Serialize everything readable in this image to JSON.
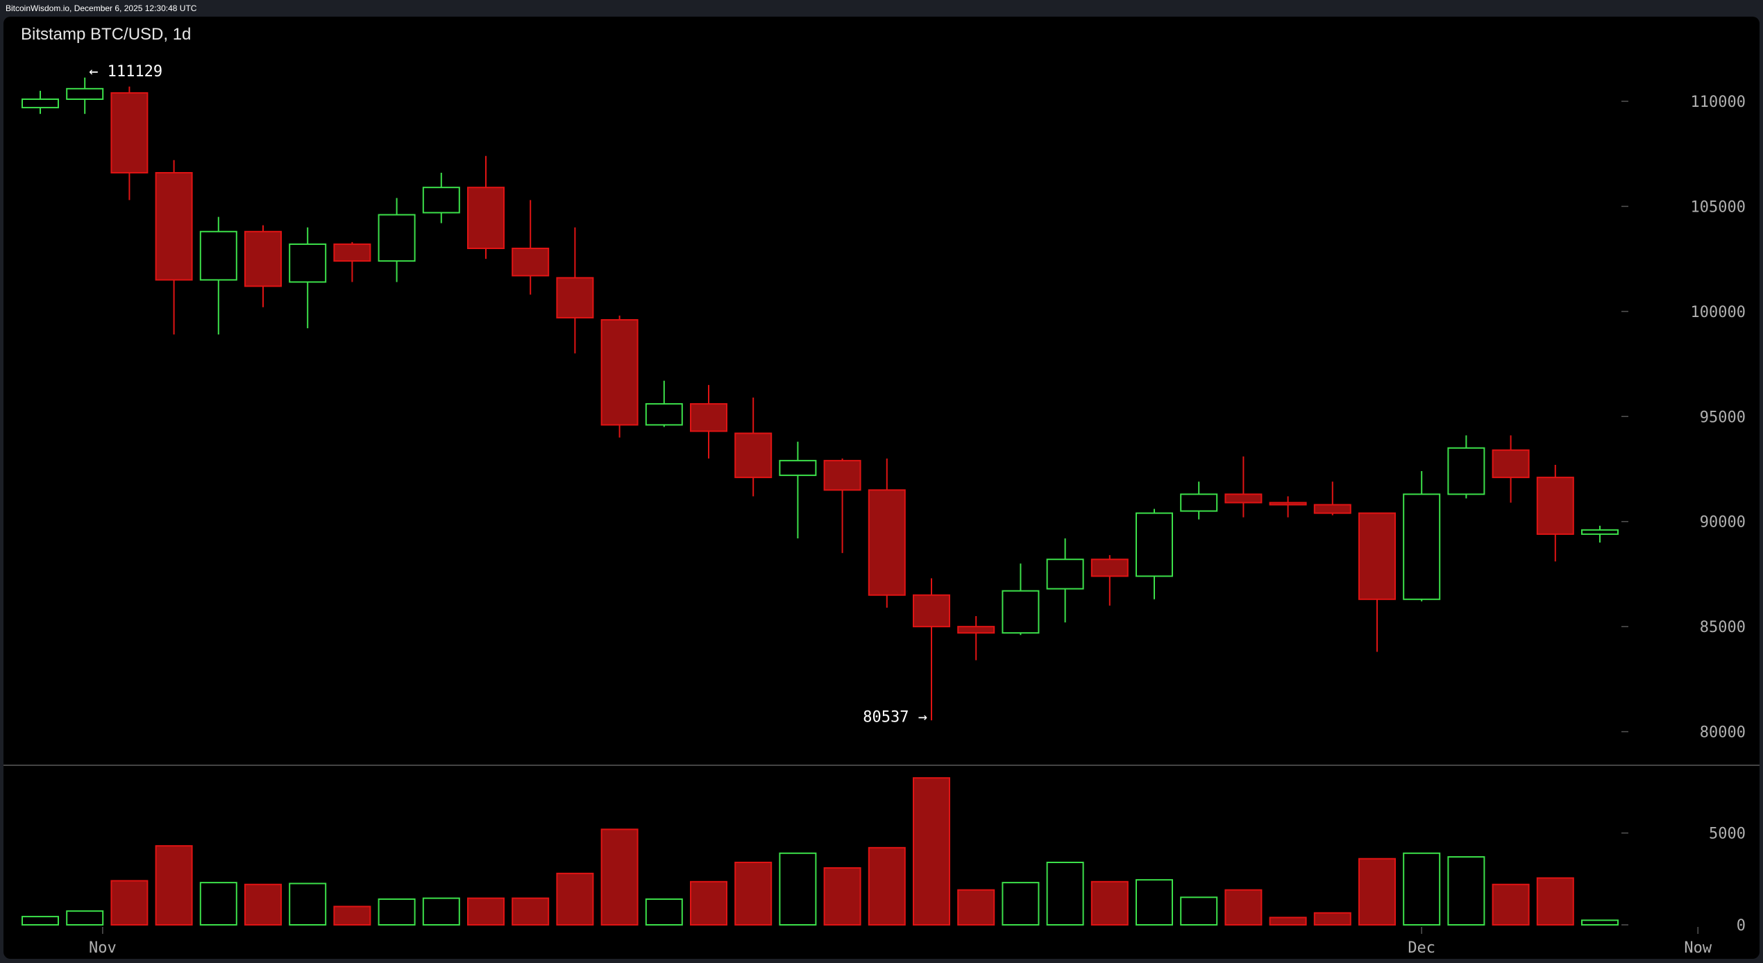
{
  "header": {
    "source": "BitcoinWisdom.io, December 6, 2025 12:30:48 UTC"
  },
  "chart_data": {
    "type": "candlestick",
    "title": "Bitstamp BTC/USD, 1d",
    "colors": {
      "up": "#3ce04a",
      "down": "#e01414",
      "down_fill": "#9b1010",
      "background": "#000000",
      "axis_text": "#b0b0b0"
    },
    "ylim": [
      78500,
      113500
    ],
    "y_ticks": [
      80000,
      85000,
      90000,
      95000,
      100000,
      105000,
      110000
    ],
    "y_tick_labels": [
      "80000",
      "85000",
      "90000",
      "95000",
      "100000",
      "105000",
      "110000"
    ],
    "volume_ylim": [
      0,
      8500
    ],
    "volume_ticks": [
      0,
      5000
    ],
    "volume_tick_labels": [
      "0",
      "5000"
    ],
    "x_labels": [
      {
        "label": "Nov",
        "index": 1.4
      },
      {
        "label": "Dec",
        "index": 31
      },
      {
        "label": "Now",
        "index": 37.2
      }
    ],
    "annotations": [
      {
        "label": "← 111129",
        "index": 1,
        "value": 111129,
        "side": "right"
      },
      {
        "label": "80537 →",
        "index": 20,
        "value": 80537,
        "side": "left"
      }
    ],
    "candles": [
      {
        "o": 109700,
        "h": 110500,
        "l": 109400,
        "c": 110100,
        "v": 450
      },
      {
        "o": 110100,
        "h": 111129,
        "l": 109400,
        "c": 110600,
        "v": 750
      },
      {
        "o": 110400,
        "h": 110700,
        "l": 105300,
        "c": 106600,
        "v": 2400
      },
      {
        "o": 106600,
        "h": 107200,
        "l": 98900,
        "c": 101500,
        "v": 4300
      },
      {
        "o": 101500,
        "h": 104500,
        "l": 98900,
        "c": 103800,
        "v": 2300
      },
      {
        "o": 103800,
        "h": 104100,
        "l": 100200,
        "c": 101200,
        "v": 2200
      },
      {
        "o": 101400,
        "h": 104000,
        "l": 99200,
        "c": 103200,
        "v": 2250
      },
      {
        "o": 103200,
        "h": 103300,
        "l": 101400,
        "c": 102400,
        "v": 1000
      },
      {
        "o": 102400,
        "h": 105400,
        "l": 101400,
        "c": 104600,
        "v": 1400
      },
      {
        "o": 104700,
        "h": 106600,
        "l": 104200,
        "c": 105900,
        "v": 1450
      },
      {
        "o": 105900,
        "h": 107400,
        "l": 102500,
        "c": 103000,
        "v": 1450
      },
      {
        "o": 103000,
        "h": 105300,
        "l": 100800,
        "c": 101700,
        "v": 1450
      },
      {
        "o": 101600,
        "h": 104000,
        "l": 98000,
        "c": 99700,
        "v": 2800
      },
      {
        "o": 99600,
        "h": 99800,
        "l": 94000,
        "c": 94600,
        "v": 5200
      },
      {
        "o": 94600,
        "h": 96700,
        "l": 94500,
        "c": 95600,
        "v": 1400
      },
      {
        "o": 95600,
        "h": 96500,
        "l": 93000,
        "c": 94300,
        "v": 2350
      },
      {
        "o": 94200,
        "h": 95900,
        "l": 91200,
        "c": 92100,
        "v": 3400
      },
      {
        "o": 92200,
        "h": 93800,
        "l": 89200,
        "c": 92900,
        "v": 3900
      },
      {
        "o": 92900,
        "h": 93000,
        "l": 88500,
        "c": 91500,
        "v": 3100
      },
      {
        "o": 91500,
        "h": 93000,
        "l": 85900,
        "c": 86500,
        "v": 4200
      },
      {
        "o": 86500,
        "h": 87300,
        "l": 80537,
        "c": 85000,
        "v": 8000
      },
      {
        "o": 85000,
        "h": 85500,
        "l": 83400,
        "c": 84700,
        "v": 1900
      },
      {
        "o": 84700,
        "h": 88000,
        "l": 84600,
        "c": 86700,
        "v": 2300
      },
      {
        "o": 86800,
        "h": 89200,
        "l": 85200,
        "c": 88200,
        "v": 3400
      },
      {
        "o": 88200,
        "h": 88400,
        "l": 86000,
        "c": 87400,
        "v": 2350
      },
      {
        "o": 87400,
        "h": 90600,
        "l": 86300,
        "c": 90400,
        "v": 2450
      },
      {
        "o": 90500,
        "h": 91900,
        "l": 90100,
        "c": 91300,
        "v": 1500
      },
      {
        "o": 91300,
        "h": 93100,
        "l": 90200,
        "c": 90900,
        "v": 1900
      },
      {
        "o": 90900,
        "h": 91200,
        "l": 90200,
        "c": 90800,
        "v": 400
      },
      {
        "o": 90800,
        "h": 91900,
        "l": 90300,
        "c": 90400,
        "v": 650
      },
      {
        "o": 90400,
        "h": 90400,
        "l": 83800,
        "c": 86300,
        "v": 3600
      },
      {
        "o": 86300,
        "h": 92400,
        "l": 86200,
        "c": 91300,
        "v": 3900
      },
      {
        "o": 91300,
        "h": 94100,
        "l": 91100,
        "c": 93500,
        "v": 3700
      },
      {
        "o": 93400,
        "h": 94100,
        "l": 90900,
        "c": 92100,
        "v": 2200
      },
      {
        "o": 92100,
        "h": 92700,
        "l": 88100,
        "c": 89400,
        "v": 2550
      },
      {
        "o": 89400,
        "h": 89800,
        "l": 89000,
        "c": 89600,
        "v": 250
      }
    ]
  }
}
